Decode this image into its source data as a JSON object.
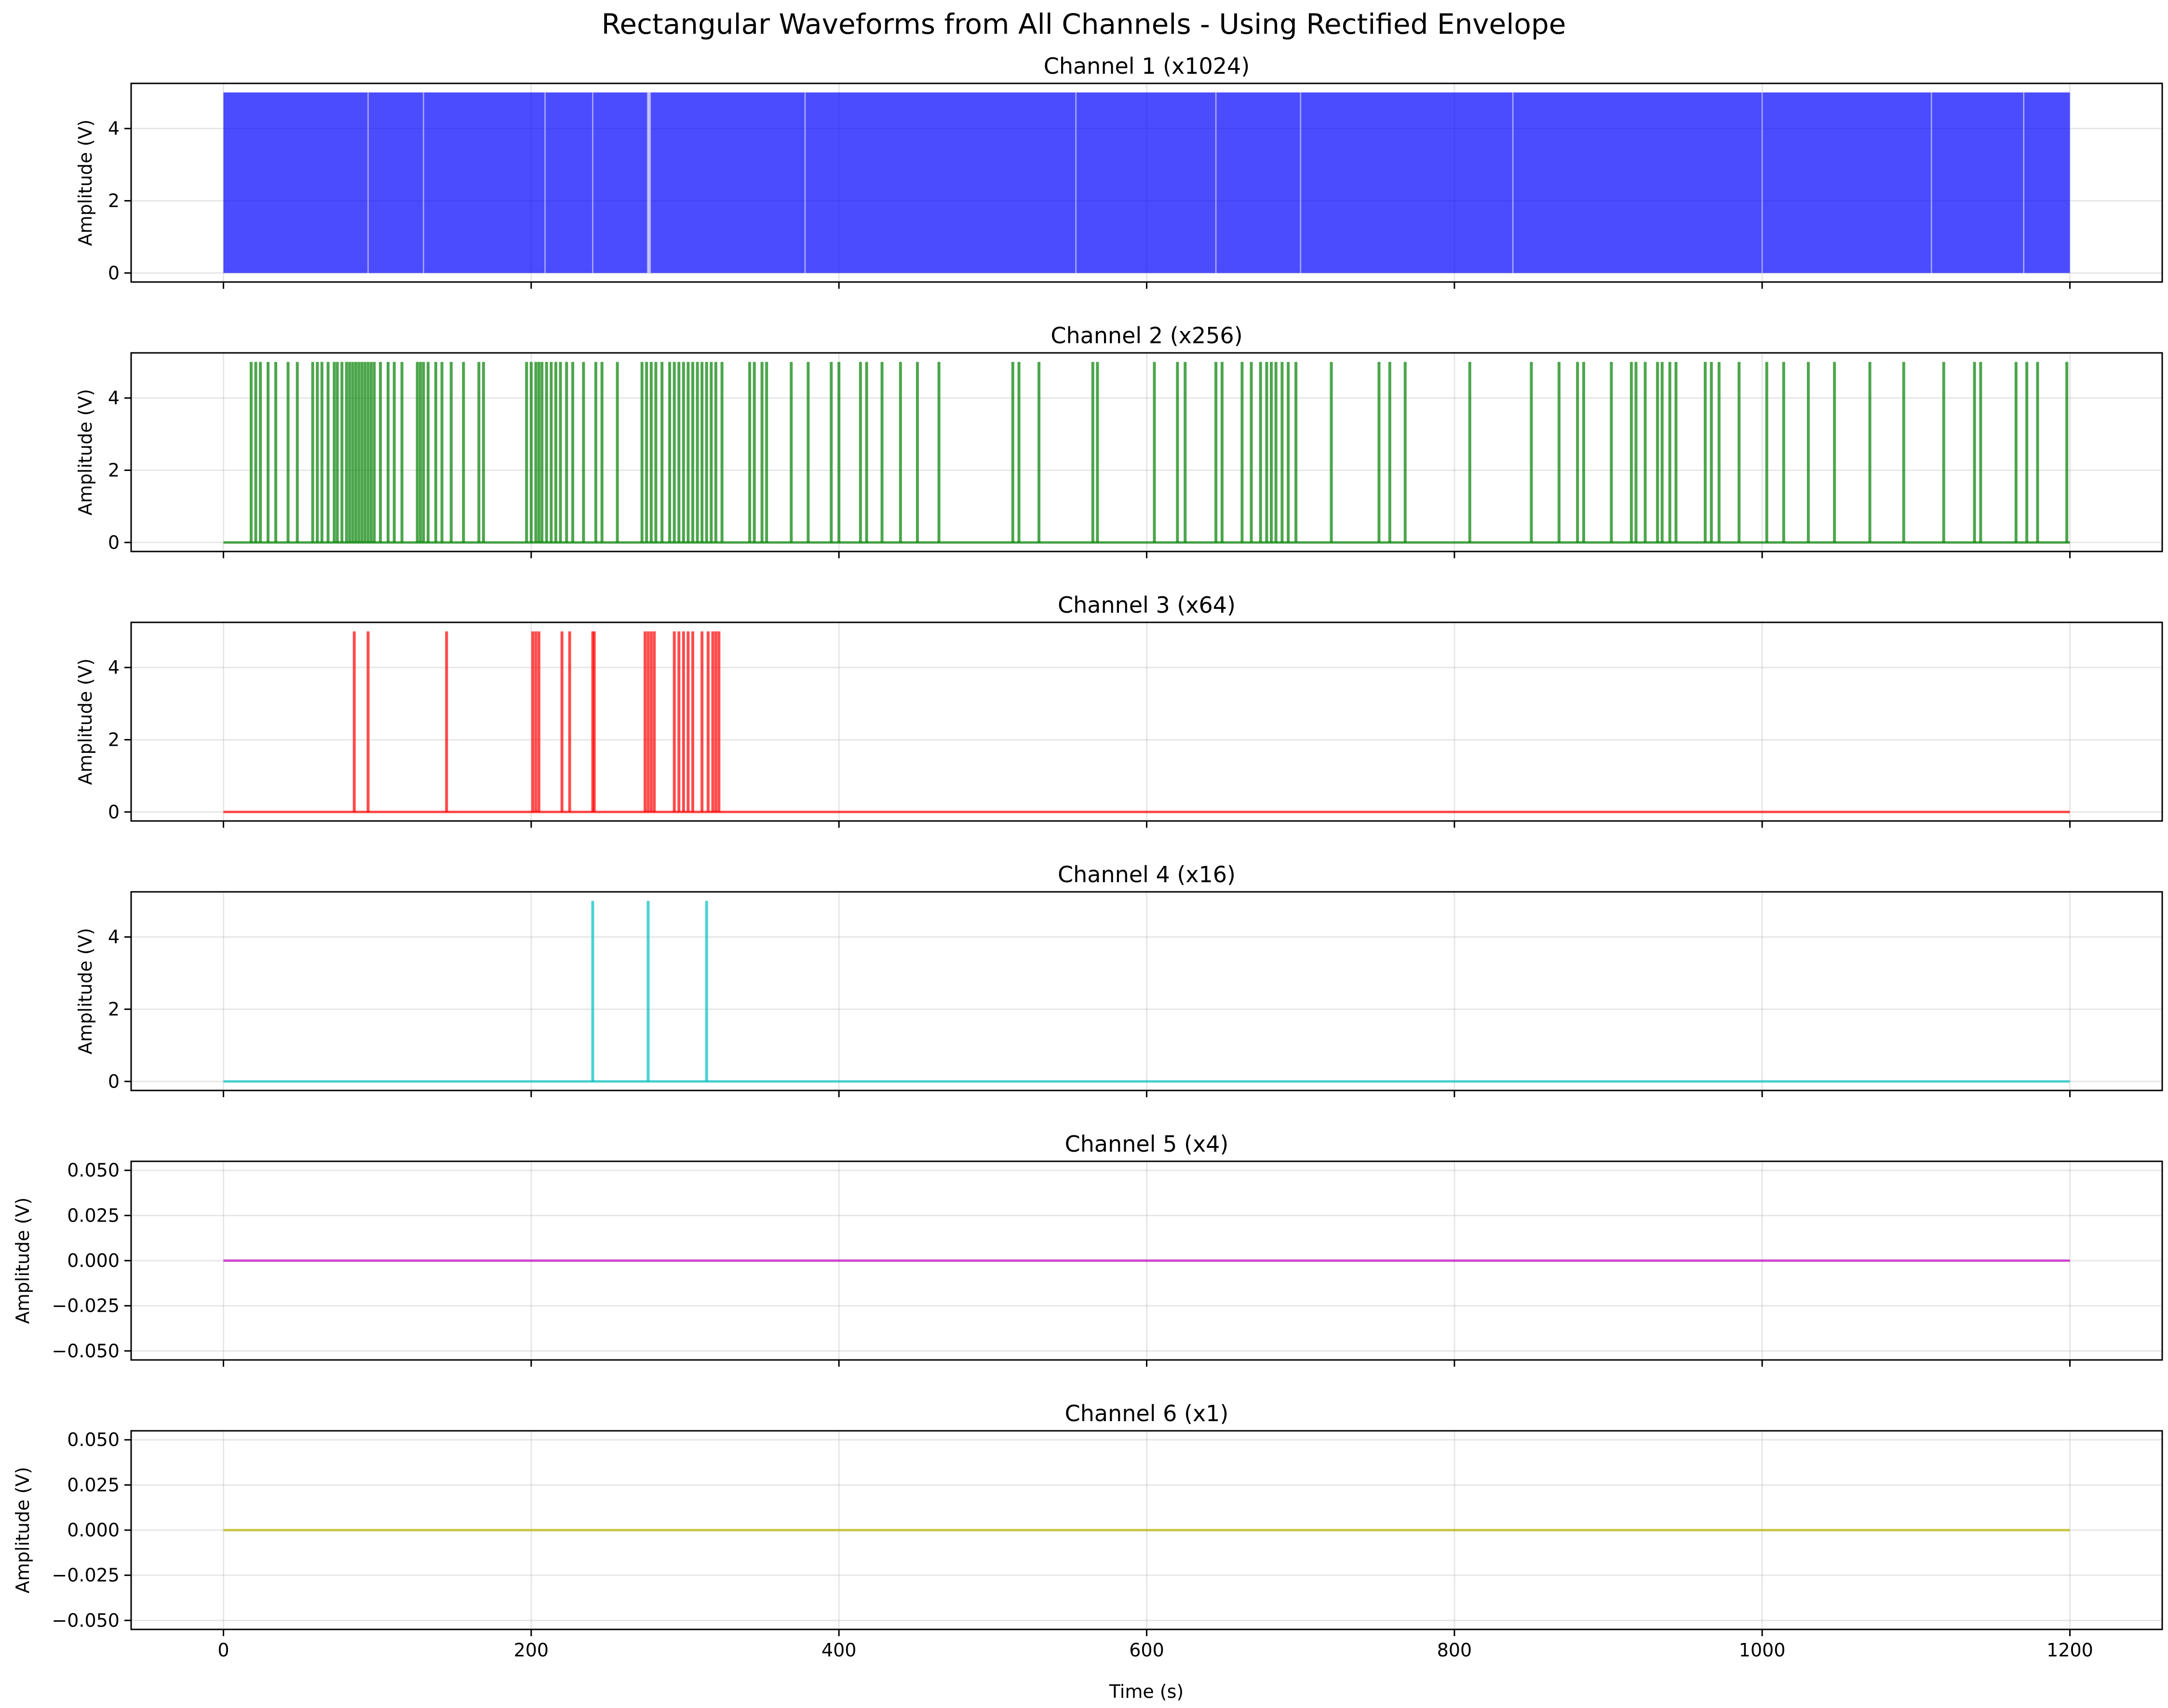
{
  "title": "Rectangular Waveforms from All Channels - Using Rectified Envelope",
  "xlabel": "Time (s)",
  "chart_data": [
    {
      "type": "line",
      "title": "Channel 1 (x1024)",
      "ylabel": "Amplitude (V)",
      "color": "#0000ff",
      "fill_mode": "dense",
      "xlim": [
        -60,
        1260
      ],
      "ylim": [
        -0.25,
        5.25
      ],
      "yticks": [
        0,
        2,
        4
      ],
      "ytick_labels": [
        "0",
        "2",
        "4"
      ],
      "xticks": [
        0,
        200,
        400,
        600,
        800,
        1000,
        1200
      ],
      "x_range": [
        0,
        1200
      ],
      "high_value": 5,
      "low_value": 0,
      "gaps": [
        94,
        130,
        209,
        240,
        276,
        277,
        378,
        554,
        645,
        700,
        838,
        1000,
        1110,
        1170
      ]
    },
    {
      "type": "line",
      "title": "Channel 2 (x256)",
      "ylabel": "Amplitude (V)",
      "color": "#008000",
      "fill_mode": "pulses",
      "xlim": [
        -60,
        1260
      ],
      "ylim": [
        -0.25,
        5.25
      ],
      "yticks": [
        0,
        2,
        4
      ],
      "ytick_labels": [
        "0",
        "2",
        "4"
      ],
      "xticks": [
        0,
        200,
        400,
        600,
        800,
        1000,
        1200
      ],
      "x_range": [
        0,
        1200
      ],
      "high_value": 5,
      "low_value": 0,
      "pulses": [
        18,
        21,
        24,
        29,
        34,
        42,
        48,
        58,
        61,
        64,
        68,
        72,
        74,
        77,
        80,
        82,
        84,
        86,
        88,
        90,
        92,
        94,
        96,
        98,
        102,
        107,
        111,
        116,
        126,
        128,
        130,
        133,
        138,
        142,
        148,
        156,
        166,
        169,
        197,
        200,
        203,
        205,
        207,
        210,
        213,
        216,
        219,
        223,
        227,
        234,
        242,
        246,
        256,
        272,
        275,
        278,
        281,
        285,
        290,
        293,
        296,
        299,
        302,
        305,
        308,
        311,
        314,
        317,
        320,
        324,
        342,
        345,
        350,
        353,
        369,
        380,
        395,
        400,
        414,
        418,
        428,
        440,
        451,
        465,
        513,
        517,
        530,
        565,
        568,
        605,
        620,
        625,
        645,
        649,
        662,
        668,
        674,
        678,
        681,
        684,
        688,
        692,
        697,
        720,
        751,
        758,
        768,
        810,
        850,
        868,
        880,
        884,
        902,
        915,
        918,
        924,
        932,
        935,
        940,
        944,
        963,
        967,
        972,
        985,
        1003,
        1014,
        1030,
        1047,
        1070,
        1092,
        1118,
        1138,
        1142,
        1165,
        1172,
        1179,
        1198
      ]
    },
    {
      "type": "line",
      "title": "Channel 3 (x64)",
      "ylabel": "Amplitude (V)",
      "color": "#ff0000",
      "fill_mode": "pulses",
      "xlim": [
        -60,
        1260
      ],
      "ylim": [
        -0.25,
        5.25
      ],
      "yticks": [
        0,
        2,
        4
      ],
      "ytick_labels": [
        "0",
        "2",
        "4"
      ],
      "xticks": [
        0,
        200,
        400,
        600,
        800,
        1000,
        1200
      ],
      "x_range": [
        0,
        1200
      ],
      "high_value": 5,
      "low_value": 0,
      "pulses": [
        85,
        94,
        145,
        201,
        203,
        205,
        220,
        225,
        240,
        241,
        274,
        276,
        278,
        280,
        293,
        296,
        299,
        302,
        305,
        311,
        315,
        318,
        320,
        322
      ]
    },
    {
      "type": "line",
      "title": "Channel 4 (x16)",
      "ylabel": "Amplitude (V)",
      "color": "#00c0c0",
      "fill_mode": "pulses",
      "xlim": [
        -60,
        1260
      ],
      "ylim": [
        -0.25,
        5.25
      ],
      "yticks": [
        0,
        2,
        4
      ],
      "ytick_labels": [
        "0",
        "2",
        "4"
      ],
      "xticks": [
        0,
        200,
        400,
        600,
        800,
        1000,
        1200
      ],
      "x_range": [
        0,
        1200
      ],
      "high_value": 5,
      "low_value": 0,
      "pulses": [
        240,
        276,
        314
      ]
    },
    {
      "type": "line",
      "title": "Channel 5 (x4)",
      "ylabel": "Amplitude (V)",
      "color": "#c000c0",
      "fill_mode": "flat",
      "xlim": [
        -60,
        1260
      ],
      "ylim": [
        -0.055,
        0.055
      ],
      "yticks": [
        -0.05,
        -0.025,
        0,
        0.025,
        0.05
      ],
      "ytick_labels": [
        "−0.050",
        "−0.025",
        "0.000",
        "0.025",
        "0.050"
      ],
      "xticks": [
        0,
        200,
        400,
        600,
        800,
        1000,
        1200
      ],
      "x_range": [
        0,
        1200
      ],
      "low_value": 0
    },
    {
      "type": "line",
      "title": "Channel 6 (x1)",
      "ylabel": "Amplitude (V)",
      "color": "#b5b500",
      "fill_mode": "flat",
      "xlim": [
        -60,
        1260
      ],
      "ylim": [
        -0.055,
        0.055
      ],
      "yticks": [
        -0.05,
        -0.025,
        0,
        0.025,
        0.05
      ],
      "ytick_labels": [
        "−0.050",
        "−0.025",
        "0.000",
        "0.025",
        "0.050"
      ],
      "xticks": [
        0,
        200,
        400,
        600,
        800,
        1000,
        1200
      ],
      "xtick_labels": [
        "0",
        "200",
        "400",
        "600",
        "800",
        "1000",
        "1200"
      ],
      "x_range": [
        0,
        1200
      ],
      "low_value": 0
    }
  ]
}
